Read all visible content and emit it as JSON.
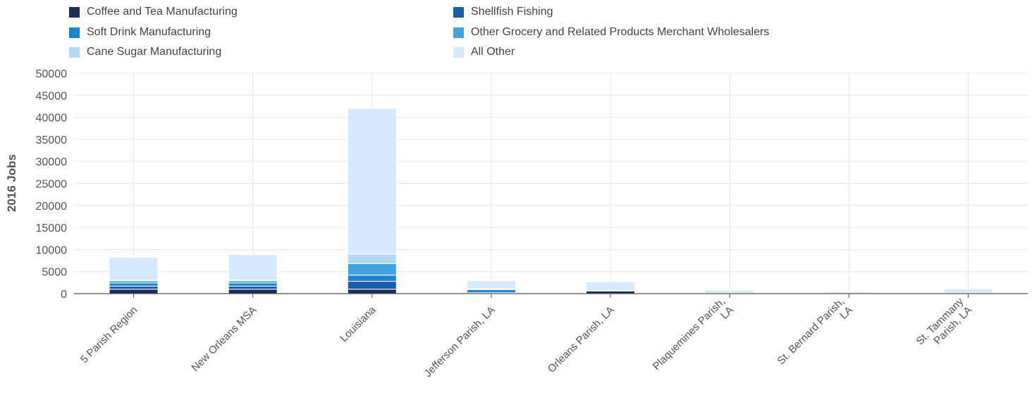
{
  "chart_data": {
    "type": "bar",
    "stacked": true,
    "ylabel": "2016 Jobs",
    "xlabel": "",
    "ylim": [
      0,
      50000
    ],
    "yticks": [
      0,
      5000,
      10000,
      15000,
      20000,
      25000,
      30000,
      35000,
      40000,
      45000,
      50000
    ],
    "grid": true,
    "legend_position": "top",
    "categories": [
      [
        "5 Parish Region"
      ],
      [
        "New Orleans MSA"
      ],
      [
        "Louisiana"
      ],
      [
        "Jefferson Parish, LA"
      ],
      [
        "Orleans Parish, LA"
      ],
      [
        "Plaquemines Parish,",
        "LA"
      ],
      [
        "St. Bernard Parish,",
        "LA"
      ],
      [
        "St. Tammany",
        "Parish, LA"
      ]
    ],
    "series": [
      {
        "name": "Coffee and Tea Manufacturing",
        "color": "#1b2d5b",
        "values": [
          1000,
          1000,
          1000,
          100,
          600,
          30,
          20,
          20
        ]
      },
      {
        "name": "Shellfish Fishing",
        "color": "#1a5fa8",
        "values": [
          700,
          700,
          1800,
          100,
          40,
          50,
          20,
          20
        ]
      },
      {
        "name": "Soft Drink Manufacturing",
        "color": "#1b85cf",
        "values": [
          700,
          700,
          1400,
          700,
          30,
          20,
          10,
          50
        ]
      },
      {
        "name": "Other Grocery and Related Products Merchant Wholesalers",
        "color": "#3fa3df",
        "values": [
          500,
          500,
          2600,
          200,
          30,
          20,
          20,
          40
        ]
      },
      {
        "name": "Cane Sugar Manufacturing",
        "color": "#b3d9f7",
        "values": [
          200,
          200,
          2200,
          100,
          20,
          30,
          20,
          20
        ]
      },
      {
        "name": "All Other",
        "color": "#d6e9fc",
        "values": [
          5100,
          5800,
          33000,
          1700,
          2000,
          600,
          300,
          900
        ]
      }
    ]
  }
}
